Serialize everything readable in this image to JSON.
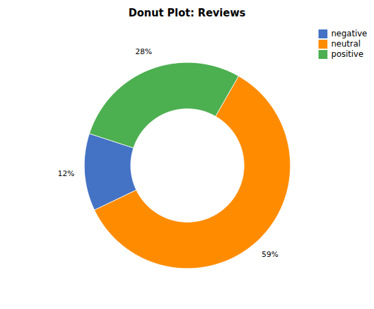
{
  "chart_data": {
    "type": "donut",
    "title": "Donut Plot: Reviews",
    "categories": [
      "negative",
      "neutral",
      "positive"
    ],
    "values": [
      12,
      59,
      28
    ],
    "value_labels": [
      "12%",
      "59%",
      "28%"
    ],
    "colors": [
      "#4472c4",
      "#ff8c00",
      "#4caf50"
    ],
    "data_labels": true,
    "legend": "upper right",
    "tick_labels": false
  }
}
